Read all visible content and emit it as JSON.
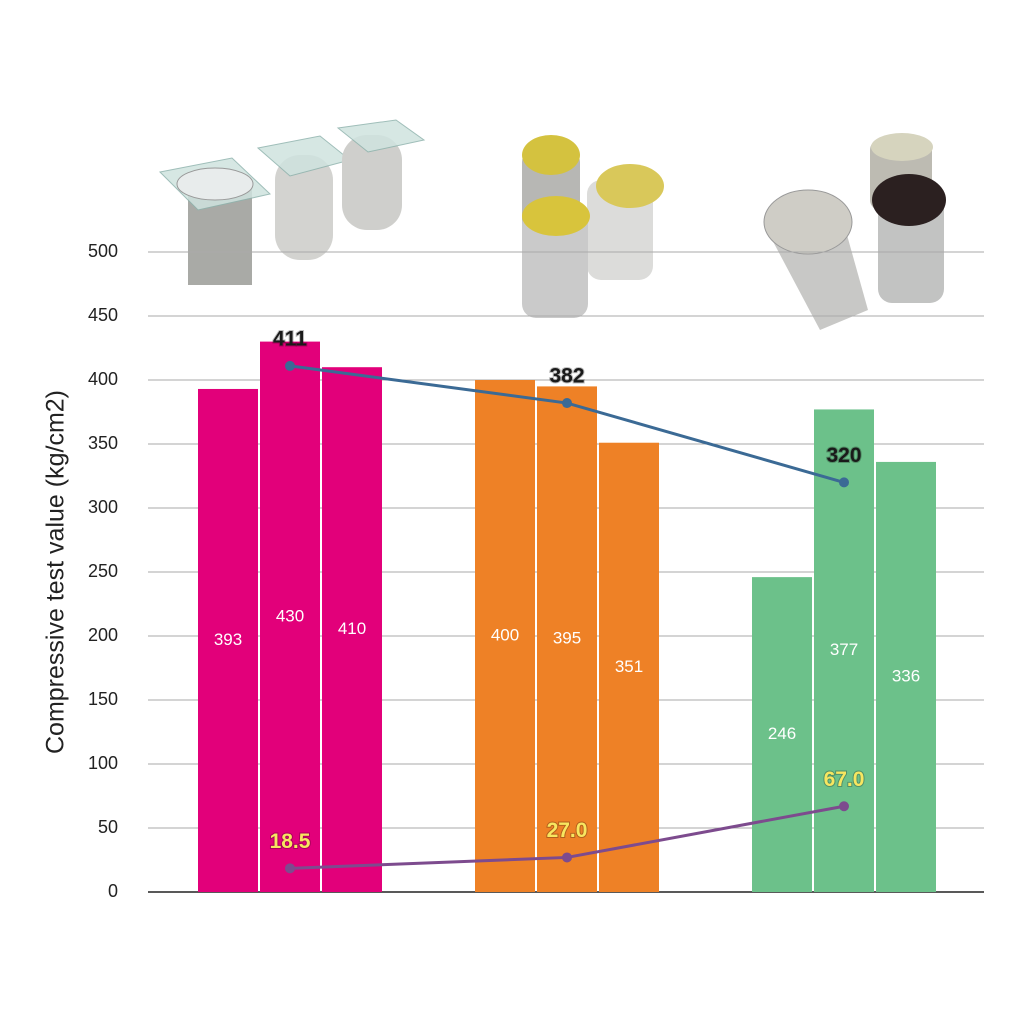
{
  "chart_data": {
    "type": "bar",
    "y_label": "Compressive test value (kg/cm2)",
    "ylim": [
      0,
      500
    ],
    "yticks": [
      0,
      50,
      100,
      150,
      200,
      250,
      300,
      350,
      400,
      450,
      500
    ],
    "grid": true,
    "groups": [
      {
        "color": "#e2007a",
        "values": [
          393,
          430,
          410
        ]
      },
      {
        "color": "#ee8126",
        "values": [
          400,
          395,
          351
        ]
      },
      {
        "color": "#6cc18a",
        "values": [
          246,
          377,
          336
        ]
      }
    ],
    "lines": [
      {
        "color": "#3b6a95",
        "label_color": "#1a1a1a",
        "values": [
          411,
          382,
          320
        ]
      },
      {
        "color": "#7d4b8e",
        "label_color": "#f7e660",
        "values": [
          18.5,
          27.0,
          67.0
        ],
        "value_labels": [
          "18.5",
          "27.0",
          "67.0"
        ]
      }
    ]
  }
}
